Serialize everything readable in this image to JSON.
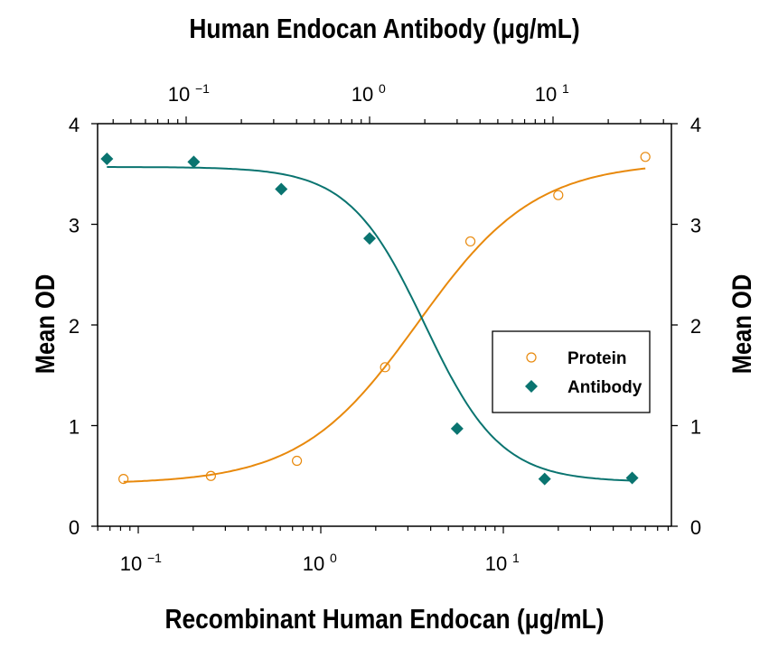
{
  "chart_data": {
    "type": "scatter",
    "title_top": "Human Endocan Antibody (μg/mL)",
    "xlabel": "Recombinant Human Endocan (μg/mL)",
    "xlabel_top": "Human Endocan Antibody (μg/mL)",
    "ylabel": "Mean OD",
    "ylabel_right": "Mean OD",
    "x_scale": "log",
    "xlim": [
      0.06,
      95
    ],
    "ylim": [
      0,
      4
    ],
    "y_ticks": [
      "0",
      "1",
      "2",
      "3",
      "4"
    ],
    "x_ticks_bottom": [
      "10^-1",
      "10^0",
      "10^1"
    ],
    "x_ticks_top": [
      "10^-1",
      "10^0",
      "10^1"
    ],
    "grid": false,
    "legend_position": "center-right",
    "series": [
      {
        "name": "Protein",
        "marker": "open-circle",
        "color": "#E8890C",
        "axis": "bottom",
        "x": [
          0.083,
          0.25,
          0.74,
          2.25,
          6.6,
          20,
          60
        ],
        "y": [
          0.47,
          0.5,
          0.65,
          1.58,
          2.83,
          3.29,
          3.67
        ],
        "fit": "4PL sigmoid increasing"
      },
      {
        "name": "Antibody",
        "marker": "filled-diamond",
        "color": "#0A7470",
        "axis": "top",
        "x": [
          0.037,
          0.11,
          0.33,
          1.0,
          3.0,
          9.0,
          27
        ],
        "y": [
          3.65,
          3.62,
          3.35,
          2.86,
          0.97,
          0.47,
          0.48
        ],
        "fit": "4PL sigmoid decreasing"
      }
    ]
  },
  "labels": {
    "top_title": "Human Endocan Antibody (μg/mL)",
    "bottom_title": "Recombinant Human Endocan (μg/mL)",
    "left_title": "Mean OD",
    "right_title": "Mean OD",
    "legend_protein": "Protein",
    "legend_antibody": "Antibody"
  },
  "colors": {
    "protein": "#E8890C",
    "antibody": "#0A7470",
    "axis": "#000000"
  }
}
